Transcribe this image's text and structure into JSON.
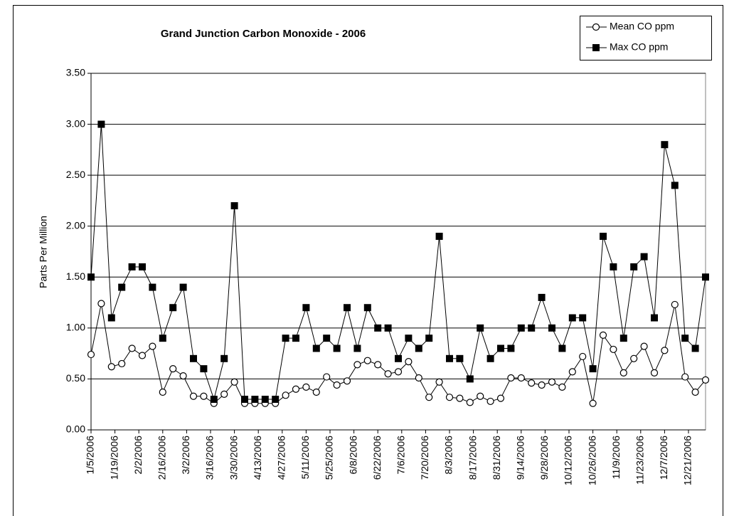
{
  "chart_data": {
    "type": "line",
    "title": "Grand Junction Carbon Monoxide - 2006",
    "ylabel": "Parts Per Million",
    "x": [
      "1/5/2006",
      "1/11/2006",
      "1/17/2006",
      "1/23/2006",
      "1/29/2006",
      "2/4/2006",
      "2/10/2006",
      "2/16/2006",
      "2/22/2006",
      "2/28/2006",
      "3/6/2006",
      "3/12/2006",
      "3/18/2006",
      "3/24/2006",
      "3/30/2006",
      "4/5/2006",
      "4/11/2006",
      "4/17/2006",
      "4/23/2006",
      "4/29/2006",
      "5/5/2006",
      "5/11/2006",
      "5/17/2006",
      "5/23/2006",
      "5/29/2006",
      "6/4/2006",
      "6/10/2006",
      "6/16/2006",
      "6/22/2006",
      "6/28/2006",
      "7/4/2006",
      "7/10/2006",
      "7/16/2006",
      "7/22/2006",
      "7/28/2006",
      "8/3/2006",
      "8/9/2006",
      "8/15/2006",
      "8/21/2006",
      "8/27/2006",
      "9/2/2006",
      "9/8/2006",
      "9/14/2006",
      "9/20/2006",
      "9/26/2006",
      "10/2/2006",
      "10/8/2006",
      "10/14/2006",
      "10/20/2006",
      "10/26/2006",
      "11/1/2006",
      "11/7/2006",
      "11/13/2006",
      "11/19/2006",
      "11/25/2006",
      "12/1/2006",
      "12/7/2006",
      "12/13/2006",
      "12/19/2006",
      "12/25/2006",
      "12/31/2006"
    ],
    "series": [
      {
        "name": "Mean CO ppm",
        "color": "#000000",
        "marker": "circle-open",
        "values": [
          0.74,
          1.24,
          0.62,
          0.65,
          0.8,
          0.73,
          0.82,
          0.37,
          0.6,
          0.53,
          0.33,
          0.33,
          0.26,
          0.35,
          0.47,
          0.26,
          0.26,
          0.26,
          0.26,
          0.34,
          0.4,
          0.42,
          0.37,
          0.52,
          0.44,
          0.48,
          0.64,
          0.68,
          0.64,
          0.55,
          0.57,
          0.67,
          0.51,
          0.32,
          0.47,
          0.32,
          0.31,
          0.27,
          0.33,
          0.28,
          0.31,
          0.51,
          0.51,
          0.46,
          0.44,
          0.47,
          0.42,
          0.57,
          0.72,
          0.26,
          0.93,
          0.79,
          0.56,
          0.7,
          0.82,
          0.56,
          0.78,
          1.23,
          0.52,
          0.37,
          0.49
        ]
      },
      {
        "name": "Max CO ppm",
        "color": "#000000",
        "marker": "square",
        "values": [
          1.5,
          3.0,
          1.1,
          1.4,
          1.6,
          1.6,
          1.4,
          0.9,
          1.2,
          1.4,
          0.7,
          0.6,
          0.3,
          0.7,
          2.2,
          0.3,
          0.3,
          0.3,
          0.3,
          0.9,
          0.9,
          1.2,
          0.8,
          0.9,
          0.8,
          1.2,
          0.8,
          1.2,
          1.0,
          1.0,
          0.7,
          0.9,
          0.8,
          0.9,
          1.9,
          0.7,
          0.7,
          0.5,
          1.0,
          0.7,
          0.8,
          0.8,
          1.0,
          1.0,
          1.3,
          1.0,
          0.8,
          1.1,
          1.1,
          0.6,
          1.9,
          1.6,
          0.9,
          1.6,
          1.7,
          1.1,
          2.8,
          2.4,
          0.9,
          0.8,
          1.5
        ]
      }
    ],
    "xlim": [
      "1/5/2006",
      "12/31/2006"
    ],
    "xticks": [
      "1/5/2006",
      "1/19/2006",
      "2/2/2006",
      "2/16/2006",
      "3/2/2006",
      "3/16/2006",
      "3/30/2006",
      "4/13/2006",
      "4/27/2006",
      "5/11/2006",
      "5/25/2006",
      "6/8/2006",
      "6/22/2006",
      "7/6/2006",
      "7/20/2006",
      "8/3/2006",
      "8/17/2006",
      "8/31/2006",
      "9/14/2006",
      "9/28/2006",
      "10/12/2006",
      "10/26/2006",
      "11/9/2006",
      "11/23/2006",
      "12/7/2006",
      "12/21/2006"
    ],
    "ylim": [
      0,
      3.5
    ],
    "yticks": [
      {
        "value": 0,
        "label": "0.00"
      },
      {
        "value": 0.5,
        "label": "0.50"
      },
      {
        "value": 1,
        "label": "1.00"
      },
      {
        "value": 1.5,
        "label": "1.50"
      },
      {
        "value": 2,
        "label": "2.00"
      },
      {
        "value": 2.5,
        "label": "2.50"
      },
      {
        "value": 3,
        "label": "3.00"
      },
      {
        "value": 3.5,
        "label": "3.50"
      }
    ],
    "grid": true,
    "legend": "top-right"
  }
}
